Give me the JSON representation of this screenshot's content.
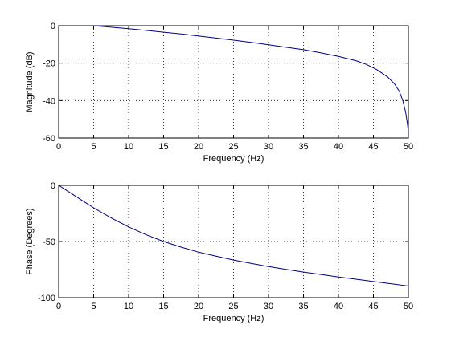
{
  "chart_data": [
    {
      "type": "line",
      "title": "",
      "xlabel": "Frequency (Hz)",
      "ylabel": "Magnitude (dB)",
      "xlim": [
        0,
        50
      ],
      "ylim": [
        -60,
        0
      ],
      "xticks": [
        0,
        5,
        10,
        15,
        20,
        25,
        30,
        35,
        40,
        45,
        50
      ],
      "yticks": [
        -60,
        -40,
        -20,
        0
      ],
      "grid": true,
      "series": [
        {
          "color": "#000080",
          "x": [
            5,
            7.5,
            10,
            12.5,
            15,
            17.5,
            20,
            22.5,
            25,
            27.5,
            30,
            32.5,
            35,
            37.5,
            40,
            42.5,
            44,
            45.5,
            47,
            48,
            48.7,
            49.2,
            49.6,
            49.85,
            50
          ],
          "y": [
            0,
            -0.8,
            -1.6,
            -2.5,
            -3.5,
            -4.4,
            -5.5,
            -6.6,
            -7.7,
            -8.9,
            -10.2,
            -11.5,
            -12.8,
            -14.5,
            -16.4,
            -18.7,
            -20.7,
            -23.5,
            -27.3,
            -31,
            -35,
            -40,
            -46,
            -52,
            -57
          ]
        }
      ]
    },
    {
      "type": "line",
      "title": "",
      "xlabel": "Frequency (Hz)",
      "ylabel": "Phase (Degrees)",
      "xlim": [
        0,
        50
      ],
      "ylim": [
        -100,
        0
      ],
      "xticks": [
        0,
        5,
        10,
        15,
        20,
        25,
        30,
        35,
        40,
        45,
        50
      ],
      "yticks": [
        -100,
        -50,
        0
      ],
      "grid": true,
      "series": [
        {
          "color": "#000080",
          "x": [
            0,
            1,
            2,
            3,
            4,
            5,
            7.5,
            10,
            12.5,
            15,
            17.5,
            20,
            22.5,
            25,
            27.5,
            30,
            32.5,
            35,
            37.5,
            40,
            42.5,
            45,
            47.5,
            50
          ],
          "y": [
            0,
            -4,
            -8,
            -12,
            -16,
            -20,
            -29,
            -37,
            -44,
            -50,
            -55,
            -59.5,
            -63,
            -66.5,
            -69.5,
            -72.3,
            -74.8,
            -77.2,
            -79.4,
            -81.6,
            -83.6,
            -85.6,
            -87.6,
            -89.6
          ]
        }
      ]
    }
  ]
}
